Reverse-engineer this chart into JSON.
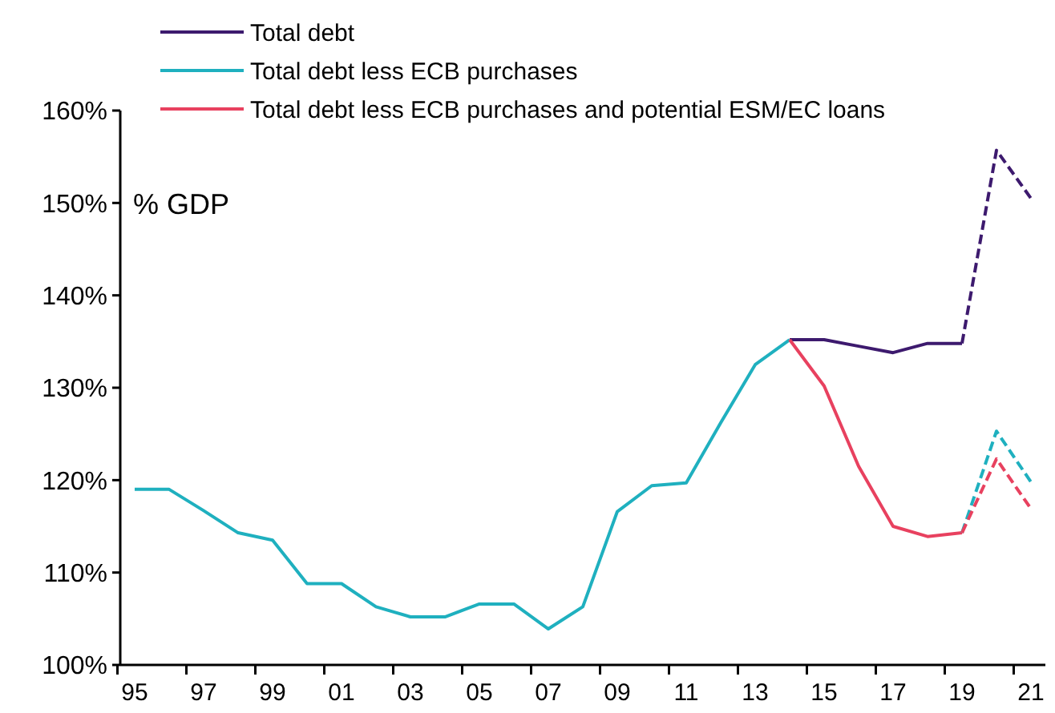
{
  "chart_data": {
    "type": "line",
    "ylabel": "% GDP",
    "categories": [
      "95",
      null,
      "97",
      null,
      "99",
      null,
      "01",
      null,
      "03",
      null,
      "05",
      null,
      "07",
      null,
      "09",
      null,
      "11",
      null,
      "13",
      null,
      "15",
      null,
      "17",
      null,
      "19",
      null,
      "21"
    ],
    "series": [
      {
        "name": "Total debt",
        "color": "#3d1a6e",
        "line_style": "solid",
        "values": [
          null,
          null,
          null,
          null,
          null,
          null,
          null,
          null,
          null,
          null,
          null,
          null,
          null,
          null,
          null,
          null,
          null,
          null,
          null,
          135.2,
          135.2,
          134.5,
          133.8,
          134.8,
          134.8,
          null,
          null
        ]
      },
      {
        "name": "Total debt less ECB purchases",
        "color": "#1fb0bf",
        "line_style": "solid",
        "values": [
          119,
          119,
          116.7,
          114.3,
          113.5,
          108.8,
          108.8,
          106.3,
          105.2,
          105.2,
          106.6,
          106.6,
          103.9,
          106.3,
          116.6,
          119.4,
          119.7,
          126.2,
          132.5,
          135.2,
          null,
          null,
          null,
          null,
          null,
          null,
          null
        ]
      },
      {
        "name": "Total debt less ECB purchases and potential ESM/EC loans",
        "color": "#e8415f",
        "line_style": "solid",
        "values": [
          null,
          null,
          null,
          null,
          null,
          null,
          null,
          null,
          null,
          null,
          null,
          null,
          null,
          null,
          null,
          null,
          null,
          null,
          null,
          135.2,
          130.2,
          121.5,
          115,
          113.9,
          114.3,
          null,
          null
        ]
      },
      {
        "color": "#3d1a6e",
        "line_style": "dashed",
        "values": [
          null,
          null,
          null,
          null,
          null,
          null,
          null,
          null,
          null,
          null,
          null,
          null,
          null,
          null,
          null,
          null,
          null,
          null,
          null,
          null,
          null,
          null,
          null,
          null,
          134.8,
          155.7,
          150.5
        ]
      },
      {
        "color": "#1fb0bf",
        "line_style": "dashed",
        "values": [
          null,
          null,
          null,
          null,
          null,
          null,
          null,
          null,
          null,
          null,
          null,
          null,
          null,
          null,
          null,
          null,
          null,
          null,
          null,
          null,
          null,
          null,
          null,
          null,
          114.3,
          125.3,
          119.8
        ]
      },
      {
        "color": "#e8415f",
        "line_style": "dashed",
        "values": [
          null,
          null,
          null,
          null,
          null,
          null,
          null,
          null,
          null,
          null,
          null,
          null,
          null,
          null,
          null,
          null,
          null,
          null,
          null,
          null,
          null,
          null,
          null,
          null,
          114.3,
          122.3,
          116.9
        ]
      }
    ],
    "ylim": [
      100,
      160
    ],
    "yticks": [
      {
        "value": 100,
        "label": "100%"
      },
      {
        "value": 110,
        "label": "110%"
      },
      {
        "value": 120,
        "label": "120%"
      },
      {
        "value": 130,
        "label": "130%"
      },
      {
        "value": 140,
        "label": "140%"
      },
      {
        "value": 150,
        "label": "150%"
      },
      {
        "value": 160,
        "label": "160%"
      }
    ],
    "grid": false,
    "legend": "top",
    "marker": "none"
  }
}
